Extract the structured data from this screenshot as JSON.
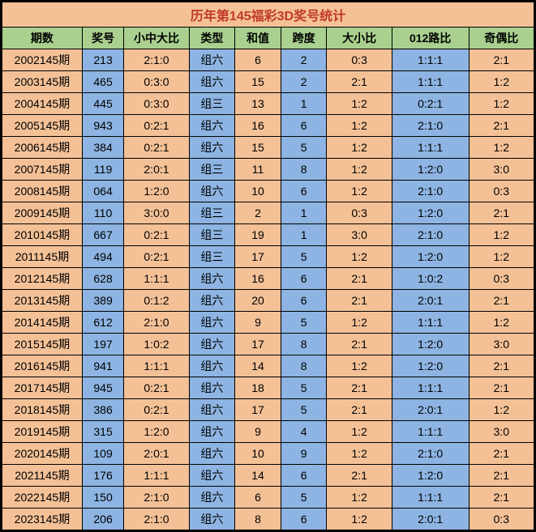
{
  "title": "历年第145福彩3D奖号统计",
  "columns": [
    "期数",
    "奖号",
    "小中大比",
    "类型",
    "和值",
    "跨度",
    "大小比",
    "012路比",
    "奇偶比"
  ],
  "col_colors": [
    "orange",
    "blue",
    "orange",
    "blue",
    "orange",
    "blue",
    "orange",
    "blue",
    "orange"
  ],
  "colors": {
    "orange": "#f4c197",
    "blue": "#8db4e2",
    "header_green": "#a9d08e",
    "title_text": "#c0392b",
    "border": "#000000"
  },
  "rows": [
    [
      "2002145期",
      "213",
      "2:1:0",
      "组六",
      "6",
      "2",
      "0:3",
      "1:1:1",
      "2:1"
    ],
    [
      "2003145期",
      "465",
      "0:3:0",
      "组六",
      "15",
      "2",
      "2:1",
      "1:1:1",
      "1:2"
    ],
    [
      "2004145期",
      "445",
      "0:3:0",
      "组三",
      "13",
      "1",
      "1:2",
      "0:2:1",
      "1:2"
    ],
    [
      "2005145期",
      "943",
      "0:2:1",
      "组六",
      "16",
      "6",
      "1:2",
      "2:1:0",
      "2:1"
    ],
    [
      "2006145期",
      "384",
      "0:2:1",
      "组六",
      "15",
      "5",
      "1:2",
      "1:1:1",
      "1:2"
    ],
    [
      "2007145期",
      "119",
      "2:0:1",
      "组三",
      "11",
      "8",
      "1:2",
      "1:2:0",
      "3:0"
    ],
    [
      "2008145期",
      "064",
      "1:2:0",
      "组六",
      "10",
      "6",
      "1:2",
      "2:1:0",
      "0:3"
    ],
    [
      "2009145期",
      "110",
      "3:0:0",
      "组三",
      "2",
      "1",
      "0:3",
      "1:2:0",
      "2:1"
    ],
    [
      "2010145期",
      "667",
      "0:2:1",
      "组三",
      "19",
      "1",
      "3:0",
      "2:1:0",
      "1:2"
    ],
    [
      "2011145期",
      "494",
      "0:2:1",
      "组三",
      "17",
      "5",
      "1:2",
      "1:2:0",
      "1:2"
    ],
    [
      "2012145期",
      "628",
      "1:1:1",
      "组六",
      "16",
      "6",
      "2:1",
      "1:0:2",
      "0:3"
    ],
    [
      "2013145期",
      "389",
      "0:1:2",
      "组六",
      "20",
      "6",
      "2:1",
      "2:0:1",
      "2:1"
    ],
    [
      "2014145期",
      "612",
      "2:1:0",
      "组六",
      "9",
      "5",
      "1:2",
      "1:1:1",
      "1:2"
    ],
    [
      "2015145期",
      "197",
      "1:0:2",
      "组六",
      "17",
      "8",
      "2:1",
      "1:2:0",
      "3:0"
    ],
    [
      "2016145期",
      "941",
      "1:1:1",
      "组六",
      "14",
      "8",
      "1:2",
      "1:2:0",
      "2:1"
    ],
    [
      "2017145期",
      "945",
      "0:2:1",
      "组六",
      "18",
      "5",
      "2:1",
      "1:1:1",
      "2:1"
    ],
    [
      "2018145期",
      "386",
      "0:2:1",
      "组六",
      "17",
      "5",
      "2:1",
      "2:0:1",
      "1:2"
    ],
    [
      "2019145期",
      "315",
      "1:2:0",
      "组六",
      "9",
      "4",
      "1:2",
      "1:1:1",
      "3:0"
    ],
    [
      "2020145期",
      "109",
      "2:0:1",
      "组六",
      "10",
      "9",
      "1:2",
      "2:1:0",
      "2:1"
    ],
    [
      "2021145期",
      "176",
      "1:1:1",
      "组六",
      "14",
      "6",
      "2:1",
      "1:2:0",
      "2:1"
    ],
    [
      "2022145期",
      "150",
      "2:1:0",
      "组六",
      "6",
      "5",
      "1:2",
      "1:1:1",
      "2:1"
    ],
    [
      "2023145期",
      "206",
      "2:1:0",
      "组六",
      "8",
      "6",
      "1:2",
      "2:0:1",
      "0:3"
    ]
  ]
}
